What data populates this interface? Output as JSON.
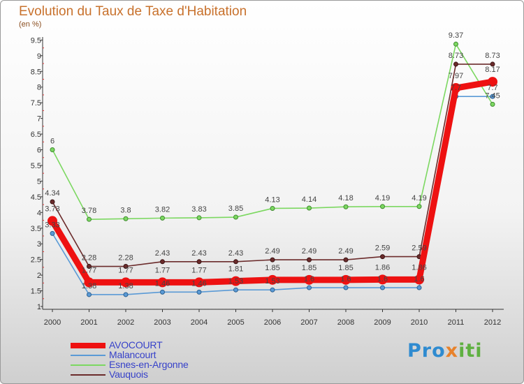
{
  "title": "Evolution du Taux de Taxe d'Habitation",
  "unit": "(en %)",
  "logo": "Proxiti",
  "chart_data": {
    "type": "line",
    "title": "Evolution du Taux de Taxe d'Habitation",
    "ylabel": "(en %)",
    "xlabel": "",
    "x": [
      "2000",
      "2001",
      "2002",
      "2003",
      "2004",
      "2005",
      "2006",
      "2007",
      "2008",
      "2009",
      "2010",
      "2011",
      "2012"
    ],
    "ylim": [
      1,
      9.5
    ],
    "yticks": [
      "1",
      "1.5",
      "2",
      "2.5",
      "3",
      "3.5",
      "4",
      "4.5",
      "5",
      "5.5",
      "6",
      "6.5",
      "7",
      "7.5",
      "8",
      "8.5",
      "9",
      "9.5"
    ],
    "grid": false,
    "legend": "bottom-left",
    "series": [
      {
        "name": "AVOCOURT",
        "color": "#ee1111",
        "values": [
          3.73,
          1.77,
          1.77,
          1.77,
          1.77,
          1.81,
          1.85,
          1.85,
          1.85,
          1.86,
          1.86,
          7.97,
          8.17
        ],
        "labels": [
          "3.73",
          "1.77",
          "1.77",
          "1.77",
          "1.77",
          "1.81",
          "1.85",
          "1.85",
          "1.85",
          "1.86",
          "1.86",
          "7.97",
          "8.17"
        ]
      },
      {
        "name": "Malancourt",
        "color": "#5a9ad6",
        "values": [
          3.33,
          1.38,
          1.38,
          1.46,
          1.46,
          1.53,
          1.53,
          1.6,
          1.6,
          1.6,
          1.6,
          7.7,
          7.7
        ],
        "labels": [
          "3.33",
          "1.38",
          "1.38",
          "1.46",
          "1.46",
          "1.53",
          "1.53",
          "1.6",
          "1.6",
          "1.6",
          "1.6",
          "7.7",
          "7.7"
        ]
      },
      {
        "name": "Esnes-en-Argonne",
        "color": "#7cd861",
        "values": [
          6.0,
          3.78,
          3.8,
          3.82,
          3.83,
          3.85,
          4.13,
          4.14,
          4.18,
          4.19,
          4.19,
          9.37,
          7.45
        ],
        "labels": [
          "6",
          "3.78",
          "3.8",
          "3.82",
          "3.83",
          "3.85",
          "4.13",
          "4.14",
          "4.18",
          "4.19",
          "4.19",
          "9.37",
          "7.45"
        ]
      },
      {
        "name": "Vauquois",
        "color": "#6b2b2b",
        "values": [
          4.34,
          2.28,
          2.28,
          2.43,
          2.43,
          2.43,
          2.49,
          2.49,
          2.49,
          2.59,
          2.59,
          8.73,
          8.73
        ],
        "labels": [
          "4.34",
          "2.28",
          "2.28",
          "2.43",
          "2.43",
          "2.43",
          "2.49",
          "2.49",
          "2.49",
          "2.59",
          "2.59",
          "8.73",
          "8.73"
        ]
      }
    ]
  }
}
